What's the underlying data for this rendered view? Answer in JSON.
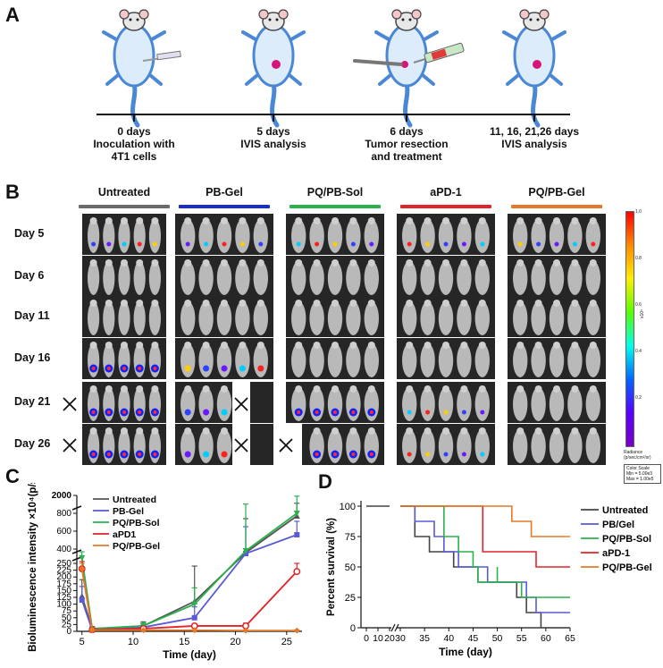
{
  "panels": {
    "a": "A",
    "b": "B",
    "c": "C",
    "d": "D"
  },
  "timeline": [
    {
      "label": "0 days\nInoculation with\n4T1 cells"
    },
    {
      "label": "5 days\nIVIS analysis"
    },
    {
      "label": "6 days\nTumor resection\nand treatment"
    },
    {
      "label": "11, 16, 21,26 days\nIVIS analysis"
    }
  ],
  "groups": [
    {
      "label": "Untreated",
      "color": "#6b6b6b"
    },
    {
      "label": "PB-Gel",
      "color": "#1a2fc9"
    },
    {
      "label": "PQ/PB-Sol",
      "color": "#2bb24c"
    },
    {
      "label": "aPD-1",
      "color": "#e0242a"
    },
    {
      "label": "PQ/PB-Gel",
      "color": "#e27a2a"
    }
  ],
  "days": [
    "Day 5",
    "Day 6",
    "Day 11",
    "Day 16",
    "Day 21",
    "Day 26"
  ],
  "colorbar": {
    "ticks": [
      "1.0",
      "0.8",
      "0.6",
      "0.4",
      "0.2"
    ],
    "exp": "x10⁵",
    "radiance": "Radiance\n(p/sec/cm²/sr)",
    "scale": "Color Scale\nMin = 5.00e3\nMax = 1.00e5"
  },
  "chart_data": [
    {
      "type": "line",
      "xlabel": "Time (day)",
      "ylabel": "Bioluminescence intensity ×10⁴(p/s)",
      "x": [
        5,
        6,
        11,
        16,
        21,
        26
      ],
      "xticks": [
        "5",
        "10",
        "15",
        "20",
        "25"
      ],
      "yticks_lower": [
        "0",
        "25",
        "50",
        "75",
        "100",
        "125",
        "150",
        "175",
        "200",
        "225",
        "250"
      ],
      "yticks_upper": [
        "400",
        "600",
        "800",
        "2000"
      ],
      "series": [
        {
          "name": "Untreated",
          "color": "#555555",
          "values": [
            130,
            8,
            20,
            110,
            360,
            770
          ],
          "err": [
            60,
            5,
            15,
            130,
            380,
            180
          ]
        },
        {
          "name": "PB-Gel",
          "color": "#5a5ad6",
          "values": [
            115,
            5,
            15,
            50,
            350,
            560
          ],
          "err": [
            50,
            4,
            10,
            40,
            300,
            150
          ]
        },
        {
          "name": "PQ/PB-Sol",
          "color": "#2bb24c",
          "values": [
            300,
            10,
            20,
            100,
            380,
            800
          ],
          "err": [
            70,
            6,
            12,
            60,
            460,
            1100
          ]
        },
        {
          "name": "aPD1",
          "color": "#e0242a",
          "values": [
            230,
            6,
            10,
            20,
            20,
            220
          ],
          "err": [
            30,
            4,
            5,
            8,
            10,
            30
          ]
        },
        {
          "name": "PQ/PB-Gel",
          "color": "#e27a2a",
          "values": [
            230,
            4,
            4,
            4,
            3,
            3
          ],
          "err": [
            20,
            2,
            2,
            2,
            2,
            2
          ]
        }
      ]
    },
    {
      "type": "line",
      "xlabel": "Time (day)",
      "ylabel": "Percent survival (%)",
      "xticks": [
        "0",
        "10",
        "20",
        "30",
        "35",
        "40",
        "45",
        "50",
        "55",
        "60",
        "65"
      ],
      "yticks": [
        "0",
        "25",
        "50",
        "75",
        "100"
      ],
      "ylim": [
        0,
        100
      ],
      "series": [
        {
          "name": "Untreated",
          "color": "#444444",
          "steps": [
            [
              20,
              100
            ],
            [
              33,
              100
            ],
            [
              33,
              75
            ],
            [
              36,
              75
            ],
            [
              36,
              62.5
            ],
            [
              41,
              62.5
            ],
            [
              41,
              50
            ],
            [
              46,
              50
            ],
            [
              46,
              37.5
            ],
            [
              54,
              37.5
            ],
            [
              54,
              25
            ],
            [
              56,
              25
            ],
            [
              56,
              12.5
            ],
            [
              59,
              12.5
            ],
            [
              59,
              0
            ],
            [
              65,
              0
            ]
          ]
        },
        {
          "name": "PB/Gel",
          "color": "#5a5ad6",
          "steps": [
            [
              20,
              100
            ],
            [
              33,
              100
            ],
            [
              33,
              87.5
            ],
            [
              37,
              87.5
            ],
            [
              37,
              75
            ],
            [
              39,
              75
            ],
            [
              39,
              62.5
            ],
            [
              42,
              62.5
            ],
            [
              42,
              50
            ],
            [
              48,
              50
            ],
            [
              48,
              37.5
            ],
            [
              56,
              37.5
            ],
            [
              56,
              25
            ],
            [
              58,
              25
            ],
            [
              58,
              12.5
            ],
            [
              65,
              12.5
            ]
          ]
        },
        {
          "name": "PQ/PB-Sol",
          "color": "#2bb24c",
          "steps": [
            [
              20,
              100
            ],
            [
              39,
              100
            ],
            [
              39,
              75
            ],
            [
              42,
              75
            ],
            [
              42,
              62.5
            ],
            [
              45,
              62.5
            ],
            [
              45,
              50
            ],
            [
              46,
              50
            ],
            [
              46,
              37.5
            ],
            [
              50,
              37.5
            ],
            [
              50,
              50
            ],
            [
              50,
              37.5
            ],
            [
              55,
              37.5
            ],
            [
              55,
              25
            ],
            [
              65,
              25
            ]
          ]
        },
        {
          "name": "aPD-1",
          "color": "#e0242a",
          "steps": [
            [
              20,
              100
            ],
            [
              47,
              100
            ],
            [
              47,
              62.5
            ],
            [
              58,
              62.5
            ],
            [
              58,
              50
            ],
            [
              65,
              50
            ]
          ]
        },
        {
          "name": "PQ/PB-Gel",
          "color": "#e27a2a",
          "steps": [
            [
              20,
              100
            ],
            [
              53,
              100
            ],
            [
              53,
              87.5
            ],
            [
              57,
              87.5
            ],
            [
              57,
              75
            ],
            [
              65,
              75
            ]
          ]
        }
      ]
    }
  ]
}
